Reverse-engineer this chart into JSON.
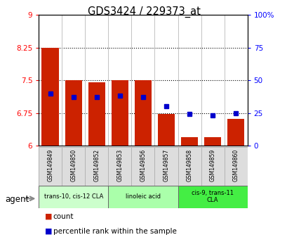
{
  "title": "GDS3424 / 229373_at",
  "samples": [
    "GSM149849",
    "GSM149850",
    "GSM149852",
    "GSM149853",
    "GSM149856",
    "GSM149857",
    "GSM149858",
    "GSM149859",
    "GSM149860"
  ],
  "bar_bottoms": [
    6.0,
    6.0,
    6.0,
    6.0,
    6.0,
    6.0,
    6.0,
    6.0,
    6.0
  ],
  "bar_tops": [
    8.25,
    7.5,
    7.45,
    7.5,
    7.5,
    6.72,
    6.2,
    6.2,
    6.62
  ],
  "percentile_pct": [
    40,
    37,
    37,
    38,
    37,
    30,
    24,
    23,
    25
  ],
  "ylim_left": [
    6.0,
    9.0
  ],
  "ylim_right": [
    0,
    100
  ],
  "yticks_left": [
    6.0,
    6.75,
    7.5,
    8.25,
    9.0
  ],
  "ytick_labels_left": [
    "6",
    "6.75",
    "7.5",
    "8.25",
    "9"
  ],
  "yticks_right": [
    0,
    25,
    50,
    75,
    100
  ],
  "ytick_labels_right": [
    "0",
    "25",
    "50",
    "75",
    "100%"
  ],
  "bar_color": "#cc2200",
  "dot_color": "#0000cc",
  "groups": [
    {
      "label": "trans-10, cis-12 CLA",
      "indices": [
        0,
        1,
        2
      ],
      "color": "#ccffcc"
    },
    {
      "label": "linoleic acid",
      "indices": [
        3,
        4,
        5
      ],
      "color": "#aaffaa"
    },
    {
      "label": "cis-9, trans-11\nCLA",
      "indices": [
        6,
        7,
        8
      ],
      "color": "#44ee44"
    }
  ],
  "legend_items": [
    {
      "color": "#cc2200",
      "label": "count"
    },
    {
      "color": "#0000cc",
      "label": "percentile rank within the sample"
    }
  ]
}
